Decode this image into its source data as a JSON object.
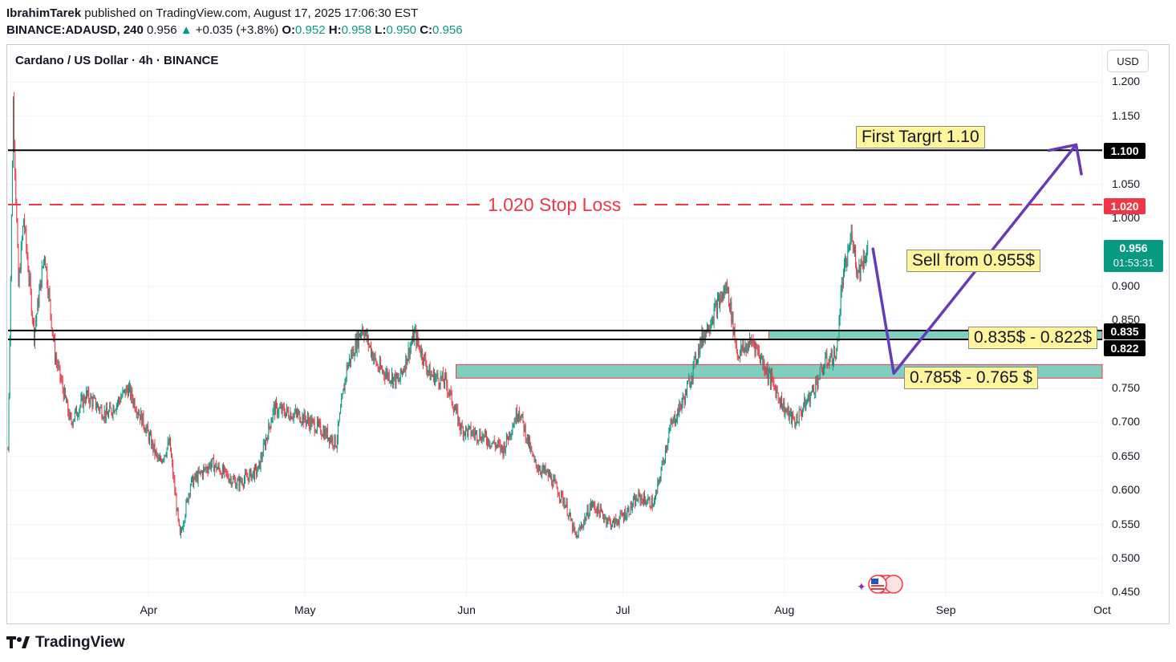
{
  "header": {
    "author": "IbrahimTarek",
    "published_text": "published on TradingView.com, August 17, 2025 17:06:30 EST",
    "symbol": "BINANCE:ADAUSD, 240",
    "last": "0.956",
    "change": "+0.035 (+3.8%)",
    "o_label": "O:",
    "o": "0.952",
    "h_label": "H:",
    "h": "0.958",
    "l_label": "L:",
    "l": "0.950",
    "c_label": "C:",
    "c": "0.956"
  },
  "chart_title": "Cardano / US Dollar · 4h · BINANCE",
  "currency": "USD",
  "y_ticks": [
    "1.200",
    "1.150",
    "1.100",
    "1.050",
    "1.000",
    "0.900",
    "0.850",
    "0.750",
    "0.700",
    "0.650",
    "0.600",
    "0.550",
    "0.500",
    "0.450"
  ],
  "x_ticks": [
    "Apr",
    "May",
    "Jun",
    "Jul",
    "Aug",
    "Sep",
    "Oct"
  ],
  "badges": {
    "target": "1.100",
    "stop": "1.020",
    "price": "0.956",
    "countdown": "01:53:31",
    "zone_high": "0.835",
    "zone_low": "0.822"
  },
  "annotations": {
    "target": "First Targrt 1.10",
    "stop_loss": "1.020 Stop Loss",
    "sell": "Sell from 0.955$",
    "zone1": "0.835$ - 0.822$",
    "zone2": "0.785$ - 0.765 $"
  },
  "brand": "TradingView",
  "colors": {
    "up": "#089981",
    "down": "#f23645",
    "zone_fill": "#7fcfc0",
    "path": "#673ab7",
    "callout_bg": "#fff59d"
  },
  "chart_data": {
    "type": "candlestick",
    "title": "Cardano / US Dollar · 4h · BINANCE",
    "ylim": [
      0.43,
      1.23
    ],
    "x_range": [
      "2025-03-05",
      "2025-10-01"
    ],
    "levels": [
      {
        "price": 1.1,
        "style": "solid",
        "label": "First Targrt 1.10"
      },
      {
        "price": 1.02,
        "style": "dashed",
        "label": "1.020 Stop Loss"
      },
      {
        "price": 0.835,
        "style": "solid"
      },
      {
        "price": 0.822,
        "style": "solid"
      }
    ],
    "zones": [
      {
        "from": "2025-07-29",
        "to": "2025-10-01",
        "high": 0.835,
        "low": 0.822
      },
      {
        "from": "2025-05-30",
        "to": "2025-10-01",
        "high": 0.785,
        "low": 0.765
      }
    ],
    "projection": [
      {
        "date": "2025-08-18",
        "price": 0.955
      },
      {
        "date": "2025-08-22",
        "price": 0.772
      },
      {
        "date": "2025-09-26",
        "price": 1.108
      },
      {
        "date": "2025-09-27",
        "price": 1.065
      }
    ],
    "price_path": [
      {
        "date": "2025-03-05",
        "price": 0.66
      },
      {
        "date": "2025-03-06",
        "price": 1.17
      },
      {
        "date": "2025-03-07",
        "price": 0.9
      },
      {
        "date": "2025-03-08",
        "price": 1.0
      },
      {
        "date": "2025-03-10",
        "price": 0.83
      },
      {
        "date": "2025-03-12",
        "price": 0.95
      },
      {
        "date": "2025-03-14",
        "price": 0.8
      },
      {
        "date": "2025-03-17",
        "price": 0.7
      },
      {
        "date": "2025-03-20",
        "price": 0.74
      },
      {
        "date": "2025-03-24",
        "price": 0.71
      },
      {
        "date": "2025-03-28",
        "price": 0.75
      },
      {
        "date": "2025-03-31",
        "price": 0.7
      },
      {
        "date": "2025-04-03",
        "price": 0.64
      },
      {
        "date": "2025-04-05",
        "price": 0.67
      },
      {
        "date": "2025-04-07",
        "price": 0.53
      },
      {
        "date": "2025-04-09",
        "price": 0.61
      },
      {
        "date": "2025-04-13",
        "price": 0.64
      },
      {
        "date": "2025-04-18",
        "price": 0.61
      },
      {
        "date": "2025-04-22",
        "price": 0.63
      },
      {
        "date": "2025-04-25",
        "price": 0.72
      },
      {
        "date": "2025-04-30",
        "price": 0.71
      },
      {
        "date": "2025-05-04",
        "price": 0.69
      },
      {
        "date": "2025-05-07",
        "price": 0.67
      },
      {
        "date": "2025-05-09",
        "price": 0.78
      },
      {
        "date": "2025-05-12",
        "price": 0.84
      },
      {
        "date": "2025-05-15",
        "price": 0.78
      },
      {
        "date": "2025-05-19",
        "price": 0.76
      },
      {
        "date": "2025-05-22",
        "price": 0.83
      },
      {
        "date": "2025-05-25",
        "price": 0.77
      },
      {
        "date": "2025-05-28",
        "price": 0.76
      },
      {
        "date": "2025-05-31",
        "price": 0.69
      },
      {
        "date": "2025-06-04",
        "price": 0.68
      },
      {
        "date": "2025-06-08",
        "price": 0.66
      },
      {
        "date": "2025-06-11",
        "price": 0.72
      },
      {
        "date": "2025-06-14",
        "price": 0.64
      },
      {
        "date": "2025-06-17",
        "price": 0.62
      },
      {
        "date": "2025-06-20",
        "price": 0.58
      },
      {
        "date": "2025-06-22",
        "price": 0.53
      },
      {
        "date": "2025-06-25",
        "price": 0.58
      },
      {
        "date": "2025-06-29",
        "price": 0.55
      },
      {
        "date": "2025-07-02",
        "price": 0.57
      },
      {
        "date": "2025-07-04",
        "price": 0.59
      },
      {
        "date": "2025-07-07",
        "price": 0.58
      },
      {
        "date": "2025-07-10",
        "price": 0.69
      },
      {
        "date": "2025-07-13",
        "price": 0.74
      },
      {
        "date": "2025-07-16",
        "price": 0.82
      },
      {
        "date": "2025-07-19",
        "price": 0.87
      },
      {
        "date": "2025-07-21",
        "price": 0.9
      },
      {
        "date": "2025-07-23",
        "price": 0.8
      },
      {
        "date": "2025-07-26",
        "price": 0.82
      },
      {
        "date": "2025-07-29",
        "price": 0.77
      },
      {
        "date": "2025-08-01",
        "price": 0.72
      },
      {
        "date": "2025-08-03",
        "price": 0.7
      },
      {
        "date": "2025-08-06",
        "price": 0.74
      },
      {
        "date": "2025-08-09",
        "price": 0.79
      },
      {
        "date": "2025-08-11",
        "price": 0.8
      },
      {
        "date": "2025-08-12",
        "price": 0.9
      },
      {
        "date": "2025-08-14",
        "price": 0.98
      },
      {
        "date": "2025-08-15",
        "price": 0.92
      },
      {
        "date": "2025-08-17",
        "price": 0.956
      }
    ]
  }
}
